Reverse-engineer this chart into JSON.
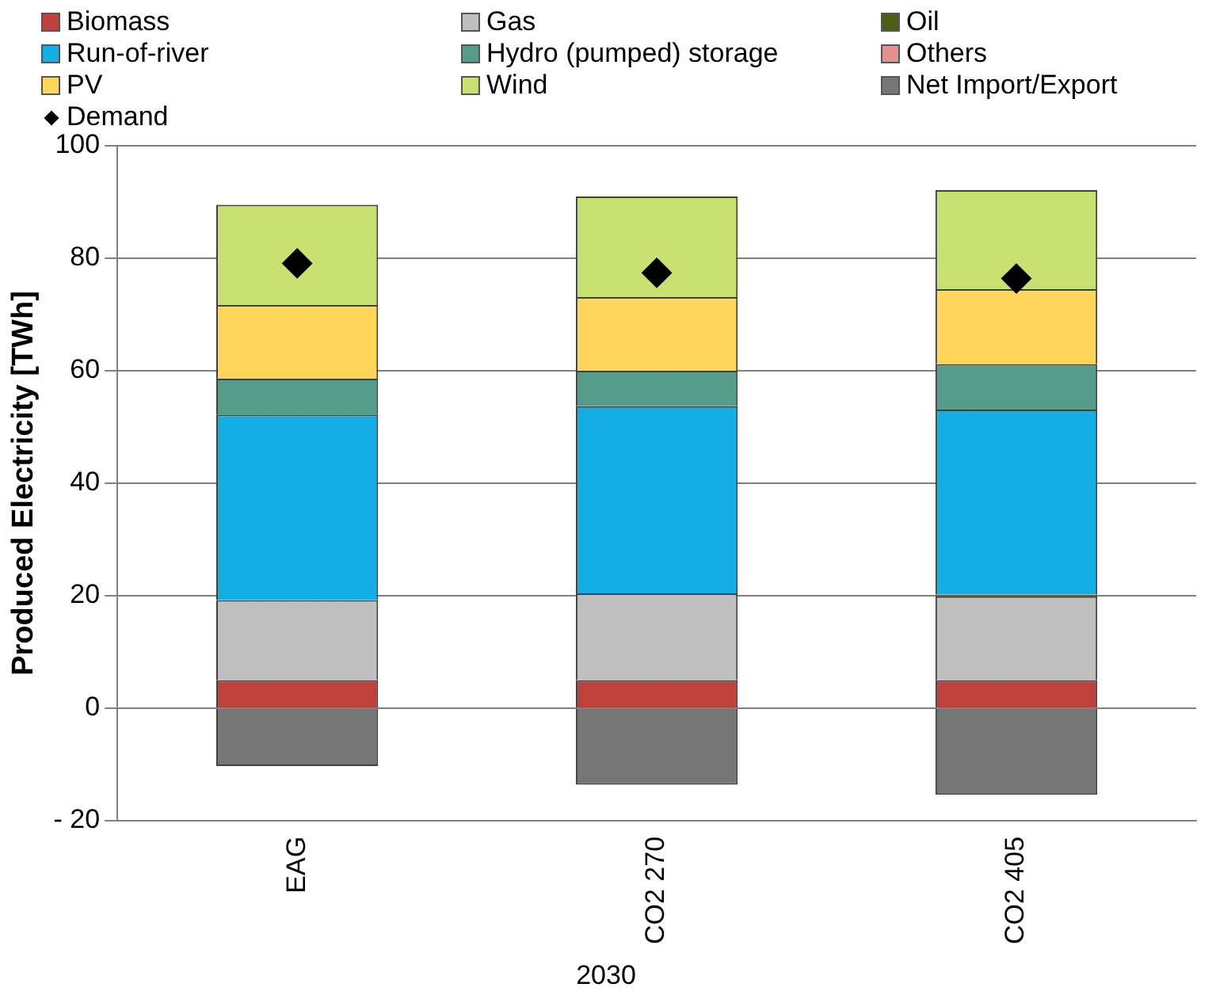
{
  "chart_data": {
    "type": "bar",
    "stacked": true,
    "ylabel": "Produced Electricity [TWh]",
    "xlabel": "2030",
    "categories": [
      "EAG",
      "CO2 270",
      "CO2 405"
    ],
    "series": [
      {
        "name": "Biomass",
        "color": "#c0403c",
        "values": [
          5.0,
          5.0,
          5.0
        ]
      },
      {
        "name": "Gas",
        "color": "#bfbfbf",
        "values": [
          14.2,
          15.4,
          14.9
        ]
      },
      {
        "name": "Oil",
        "color": "#4a5e17",
        "values": [
          0,
          0,
          0.3
        ]
      },
      {
        "name": "Run-of-river",
        "color": "#13aee4",
        "values": [
          33.0,
          33.3,
          32.9
        ]
      },
      {
        "name": "Hydro (pumped) storage",
        "color": "#559c8a",
        "values": [
          6.4,
          6.3,
          8.1
        ]
      },
      {
        "name": "Others",
        "color": "#e39090",
        "values": [
          0,
          0,
          0
        ]
      },
      {
        "name": "PV",
        "color": "#ffd55a",
        "values": [
          13.1,
          13.1,
          13.3
        ]
      },
      {
        "name": "Wind",
        "color": "#c8e070",
        "values": [
          17.8,
          17.9,
          17.6
        ]
      },
      {
        "name": "Net Import/Export",
        "color": "#767676",
        "values": [
          -10.3,
          -13.6,
          -15.4
        ]
      },
      {
        "name": "Demand",
        "type": "scatter",
        "color": "#000000",
        "marker": "diamond",
        "values": [
          79.1,
          77.4,
          76.4
        ]
      }
    ],
    "ylim": [
      -20,
      100
    ],
    "yticks": [
      {
        "value": -20,
        "label": "- 20"
      },
      0,
      20,
      40,
      60,
      80,
      100
    ],
    "grid": "y",
    "legend": "top"
  }
}
